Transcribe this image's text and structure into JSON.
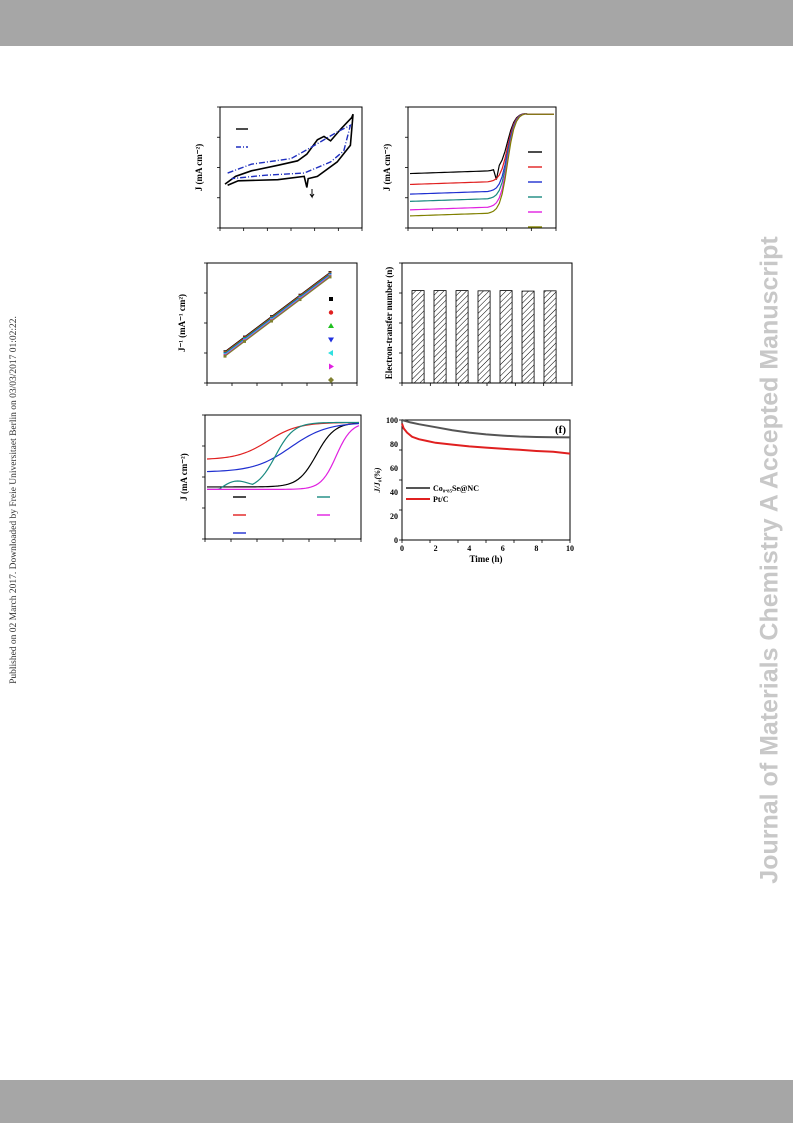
{
  "side_note": "Published on 02 March 2017. Downloaded by Freie Universitaet Berlin on 03/03/2017 01:02:22.",
  "watermark": "Journal of Materials Chemistry A Accepted Manuscript",
  "panels": {
    "a": {
      "ylabel": "J (mA cm⁻²)"
    },
    "b": {
      "ylabel": "J (mA cm⁻²)"
    },
    "c": {
      "ylabel": "J⁻¹ (mA⁻¹ cm²)"
    },
    "d": {
      "ylabel": "Electron-transfer number (n)"
    },
    "e": {
      "ylabel": "J (mA cm⁻²)"
    },
    "f": {
      "tag": "(f)",
      "ylabel": "J/J₀(%)",
      "xlabel": "Time (h)",
      "legend": [
        "Co₀.₈₅Se@NC",
        "Pt/C"
      ]
    }
  },
  "chart_data": [
    {
      "panel": "a",
      "type": "line",
      "title": "",
      "xlabel": "",
      "ylabel": "J (mA cm⁻²)",
      "series": [
        {
          "color": "#000000",
          "style": "solid"
        },
        {
          "color": "#1f2fbf",
          "style": "dash-dot"
        }
      ]
    },
    {
      "panel": "b",
      "type": "line",
      "title": "",
      "xlabel": "",
      "ylabel": "J (mA cm⁻²)",
      "series": [
        {
          "color": "#000000"
        },
        {
          "color": "#e02020"
        },
        {
          "color": "#1f2fd0"
        },
        {
          "color": "#1a8a80"
        },
        {
          "color": "#e020e0"
        },
        {
          "color": "#808000"
        }
      ]
    },
    {
      "panel": "c",
      "type": "scatter",
      "title": "",
      "xlabel": "",
      "ylabel": "J⁻¹ (mA⁻¹ cm²)",
      "legend_markers": [
        "square-black",
        "circle-red",
        "triangle-up-green",
        "triangle-down-blue",
        "triangle-left-cyan",
        "triangle-right-magenta",
        "diamond-olive"
      ]
    },
    {
      "panel": "d",
      "type": "bar",
      "title": "",
      "xlabel": "",
      "ylabel": "Electron-transfer number (n)",
      "values": [
        3.85,
        3.85,
        3.85,
        3.84,
        3.85,
        3.83,
        3.84
      ],
      "ylim": [
        0,
        5
      ],
      "pattern": "hatched"
    },
    {
      "panel": "e",
      "type": "line",
      "title": "",
      "xlabel": "",
      "ylabel": "J (mA cm⁻²)",
      "series": [
        {
          "color": "#000000"
        },
        {
          "color": "#e02020"
        },
        {
          "color": "#1f2fd0"
        },
        {
          "color": "#1a8a80"
        },
        {
          "color": "#e020e0"
        }
      ]
    },
    {
      "panel": "f",
      "type": "line",
      "title": "",
      "xlabel": "Time (h)",
      "ylabel": "J/J₀(%)",
      "xlim": [
        0,
        10
      ],
      "ylim": [
        0,
        100
      ],
      "xticks": [
        0,
        2,
        4,
        6,
        8,
        10
      ],
      "yticks": [
        0,
        20,
        40,
        60,
        80,
        100
      ],
      "series": [
        {
          "name": "Co₀.₈₅Se@NC",
          "color": "#555555",
          "x": [
            0,
            0.5,
            1,
            2,
            3,
            4,
            5,
            6,
            7,
            8,
            9,
            10
          ],
          "y": [
            100,
            98,
            96.5,
            94,
            91.5,
            89.5,
            88,
            87,
            86.2,
            85.8,
            85.6,
            85.5
          ]
        },
        {
          "name": "Pt/C",
          "color": "#e02020",
          "x": [
            0,
            0.1,
            0.3,
            0.6,
            1,
            1.5,
            2,
            3,
            4,
            5,
            6,
            7,
            8,
            9,
            10
          ],
          "y": [
            97,
            93,
            89.5,
            86,
            84,
            82.5,
            81,
            79.5,
            78,
            77,
            76,
            75.2,
            74.2,
            73.5,
            72
          ]
        }
      ]
    }
  ]
}
